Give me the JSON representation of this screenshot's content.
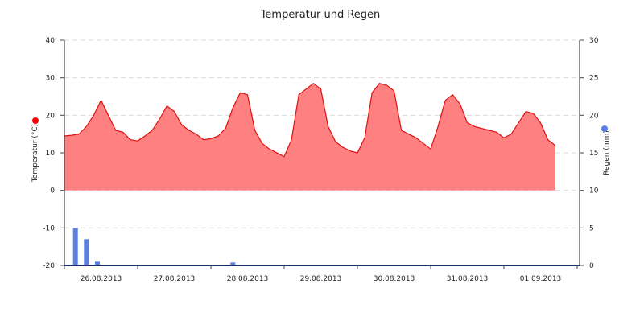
{
  "chart_data": {
    "type": "area",
    "title": "Temperatur und Regen",
    "x_labels": [
      "26.08.2013",
      "27.08.2013",
      "28.08.2013",
      "29.08.2013",
      "30.08.2013",
      "31.08.2013",
      "01.09.2013"
    ],
    "y_left": {
      "label": "Temperatur (°C)",
      "ticks": [
        "40",
        "30",
        "20",
        "10",
        "0",
        "-10",
        "-20"
      ],
      "range": [
        -20,
        40
      ]
    },
    "y_right": {
      "label": "Regen (mm)",
      "ticks": [
        "30",
        "25",
        "20",
        "15",
        "10",
        "5",
        "0"
      ],
      "range": [
        0,
        30
      ]
    },
    "grid": true,
    "colors": {
      "temperature_fill": "#ff8080",
      "temperature_line": "#e01010",
      "rain_bar": "#5b7fe6",
      "left_marker": "#ff0000",
      "right_marker": "#5b7fe6"
    },
    "series": [
      {
        "kind": "area",
        "axis": "left",
        "x_days": [
          0.0,
          0.1,
          0.2,
          0.3,
          0.4,
          0.5,
          0.6,
          0.7,
          0.8,
          0.9,
          1.0,
          1.1,
          1.2,
          1.3,
          1.4,
          1.5,
          1.6,
          1.7,
          1.8,
          1.9,
          2.0,
          2.1,
          2.2,
          2.3,
          2.4,
          2.5,
          2.6,
          2.7,
          2.8,
          2.9,
          3.0,
          3.1,
          3.2,
          3.3,
          3.4,
          3.5,
          3.6,
          3.7,
          3.8,
          3.9,
          4.0,
          4.1,
          4.2,
          4.3,
          4.4,
          4.5,
          4.6,
          4.7,
          4.8,
          4.9,
          5.0,
          5.1,
          5.2,
          5.3,
          5.4,
          5.5,
          5.6,
          5.7,
          5.8,
          5.9,
          6.0,
          6.1,
          6.2,
          6.3,
          6.4,
          6.5,
          6.6,
          6.7
        ],
        "values": [
          14.5,
          14.7,
          15.0,
          17.0,
          20.0,
          24.0,
          20.0,
          16.0,
          15.5,
          13.5,
          13.2,
          14.5,
          16.0,
          19.0,
          22.5,
          21.0,
          17.5,
          16.0,
          15.0,
          13.5,
          13.8,
          14.5,
          16.5,
          22.0,
          26.0,
          25.5,
          16.0,
          12.5,
          11.0,
          10.0,
          9.0,
          13.5,
          25.5,
          27.0,
          28.5,
          27.0,
          17.0,
          13.0,
          11.5,
          10.5,
          10.0,
          14.0,
          26.0,
          28.5,
          28.0,
          26.5,
          16.0,
          15.0,
          14.0,
          12.5,
          11.0,
          17.0,
          24.0,
          25.5,
          23.0,
          18.0,
          17.0,
          16.5,
          16.0,
          15.5,
          14.0,
          15.0,
          18.0,
          21.0,
          20.5,
          18.0,
          13.5,
          12.0
        ]
      },
      {
        "kind": "bar",
        "axis": "right",
        "x_days": [
          0.15,
          0.3,
          0.45,
          2.3
        ],
        "values": [
          5.0,
          3.5,
          0.5,
          0.4
        ]
      }
    ]
  }
}
